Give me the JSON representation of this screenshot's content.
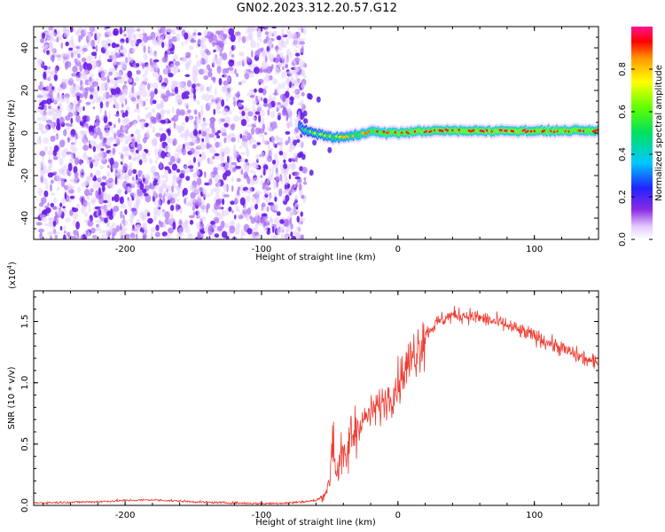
{
  "title": "GN02.2023.312.20.57.G12",
  "colors": {
    "snr_line": "#ee3a30",
    "spec_dot": "#7b2cf0"
  },
  "colorbar": {
    "label": "Normalized spectral amplitude",
    "ticks": [
      "0.0",
      "0.2",
      "0.4",
      "0.6",
      "0.8"
    ],
    "tick_values": [
      0.0,
      0.2,
      0.4,
      0.6,
      0.8
    ],
    "range": [
      0,
      1
    ]
  },
  "chart_data": [
    {
      "type": "heatmap",
      "title": "",
      "xlabel": "Height of straight line (km)",
      "ylabel": "Frequency (Hz)",
      "xlim": [
        -267,
        147
      ],
      "ylim": [
        -50,
        50
      ],
      "xticks": [
        -200,
        -100,
        0,
        100
      ],
      "xtick_labels": [
        "-200",
        "-100",
        "0",
        "100"
      ],
      "yticks": [
        -40,
        -20,
        0,
        20,
        40
      ],
      "ytick_labels": [
        "-40",
        "-20",
        "0",
        "20",
        "40"
      ],
      "noise_region_x": [
        -267,
        -72
      ],
      "ridge": {
        "x": [
          -72,
          -68,
          -62,
          -55,
          -48,
          -40,
          -30,
          -20,
          -10,
          0,
          20,
          50,
          80,
          110,
          147
        ],
        "y": [
          4,
          1,
          0,
          -1,
          -2,
          -2,
          -1,
          1,
          0,
          0,
          1,
          1,
          1,
          1,
          1
        ],
        "amplitude": [
          0.45,
          0.55,
          0.6,
          0.65,
          0.7,
          0.72,
          0.75,
          0.8,
          0.85,
          0.88,
          0.9,
          0.9,
          0.92,
          0.9,
          0.88
        ]
      }
    },
    {
      "type": "line",
      "title": "",
      "xlabel": "Height of straight line (km)",
      "ylabel": "SNR (10 * v/v)",
      "scale_label": "(x10",
      "scale_exp": "4",
      "xlim": [
        -267,
        147
      ],
      "ylim": [
        0,
        17500
      ],
      "xticks": [
        -200,
        -100,
        0,
        100
      ],
      "xtick_labels": [
        "-200",
        "-100",
        "0",
        "100"
      ],
      "yticks": [
        0,
        5000,
        10000,
        15000
      ],
      "ytick_labels": [
        "0.0",
        "0.5",
        "1.0",
        "1.5"
      ],
      "series": [
        {
          "x": [
            -267,
            -220,
            -200,
            -180,
            -160,
            -140,
            -100,
            -80,
            -60,
            -55,
            -50,
            -48,
            -45,
            -42,
            -38,
            -35,
            -30,
            -25,
            -20,
            -15,
            -10,
            -5,
            0,
            5,
            10,
            15,
            20,
            25,
            30,
            35,
            40,
            50,
            60,
            70,
            80,
            90,
            100,
            110,
            120,
            130,
            140,
            147
          ],
          "y": [
            200,
            300,
            400,
            450,
            350,
            250,
            150,
            200,
            400,
            700,
            1800,
            6000,
            2500,
            4000,
            3500,
            5500,
            6500,
            7000,
            7500,
            8000,
            8500,
            9000,
            10000,
            11000,
            12000,
            13000,
            14000,
            14500,
            15000,
            15300,
            15500,
            15500,
            15300,
            15000,
            14700,
            14200,
            13800,
            13300,
            12800,
            12300,
            11800,
            11500
          ]
        }
      ]
    }
  ]
}
